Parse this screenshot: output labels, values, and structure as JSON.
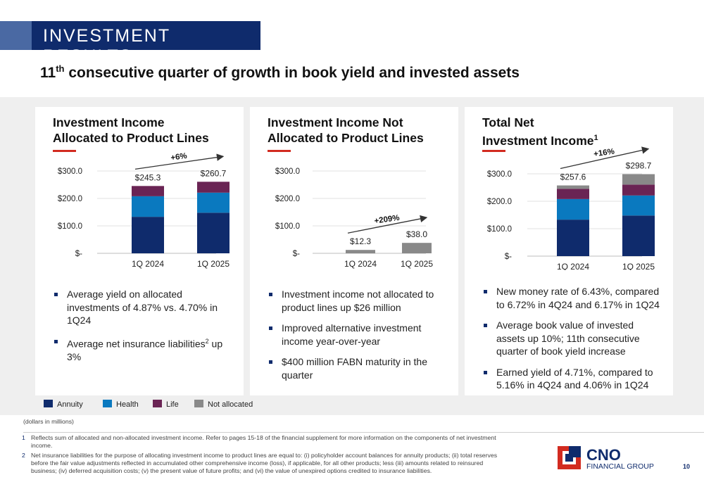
{
  "header": {
    "section_title": "INVESTMENT RESULTS",
    "subtitle_sup": "th",
    "subtitle_pre": "11",
    "subtitle_post": " consecutive quarter of growth in book yield and invested assets"
  },
  "colors": {
    "Annuity": "#0f2b6c",
    "Health": "#0a79bf",
    "Life": "#6a2454",
    "Not allocated": "#898989",
    "accent": "#d22b20"
  },
  "panels": [
    {
      "title_line1": "Investment Income",
      "title_line2": "Allocated to Product Lines",
      "bullets": [
        "Average yield on allocated investments of 4.87% vs. 4.70% in 1Q24",
        "Average net insurance liabilities"
      ],
      "bullet2_sup": "2",
      "bullet2_tail": " up 3%"
    },
    {
      "title_line1": "Investment Income Not",
      "title_line2": "Allocated to Product Lines",
      "bullets": [
        "Investment income not allocated to product lines up $26 million",
        "Improved alternative investment income year-over-year",
        "$400 million FABN maturity in the quarter"
      ]
    },
    {
      "title_line1": "Total Net",
      "title_line2": "Investment Income",
      "title_sup": "1",
      "bullets": [
        "New money rate of 6.43%, compared to 6.72% in 4Q24 and 6.17% in 1Q24",
        "Average book value of invested assets up 10%; 11th consecutive quarter of book yield increase",
        "Earned yield of 4.71%, compared to 5.16% in 4Q24 and 4.06% in 1Q24"
      ]
    }
  ],
  "chart_data": [
    {
      "type": "bar",
      "stacked": true,
      "title": "Investment Income Allocated to Product Lines",
      "categories": [
        "1Q 2024",
        "1Q 2025"
      ],
      "series": [
        {
          "name": "Annuity",
          "values": [
            133,
            148
          ]
        },
        {
          "name": "Health",
          "values": [
            75,
            73
          ]
        },
        {
          "name": "Life",
          "values": [
            37.3,
            39.7
          ]
        }
      ],
      "totals": [
        245.3,
        260.7
      ],
      "total_labels": [
        "$245.3",
        "$260.7"
      ],
      "growth_label": "+6%",
      "yticks": [
        0,
        100,
        200,
        300
      ],
      "ytick_labels": [
        "$-",
        "$100.0",
        "$200.0",
        "$300.0"
      ],
      "ylim": [
        0,
        300
      ],
      "grid": true
    },
    {
      "type": "bar",
      "stacked": true,
      "title": "Investment Income Not Allocated to Product Lines",
      "categories": [
        "1Q 2024",
        "1Q 2025"
      ],
      "series": [
        {
          "name": "Not allocated",
          "values": [
            12.3,
            38.0
          ]
        }
      ],
      "totals": [
        12.3,
        38.0
      ],
      "total_labels": [
        "$12.3",
        "$38.0"
      ],
      "growth_label": "+209%",
      "yticks": [
        0,
        100,
        200,
        300
      ],
      "ytick_labels": [
        "$-",
        "$100.0",
        "$200.0",
        "$300.0"
      ],
      "ylim": [
        0,
        300
      ],
      "grid": true
    },
    {
      "type": "bar",
      "stacked": true,
      "title": "Total Net Investment Income",
      "categories": [
        "1Q 2024",
        "1Q 2025"
      ],
      "series": [
        {
          "name": "Annuity",
          "values": [
            133,
            148
          ]
        },
        {
          "name": "Health",
          "values": [
            75,
            73
          ]
        },
        {
          "name": "Life",
          "values": [
            37.3,
            39.7
          ]
        },
        {
          "name": "Not allocated",
          "values": [
            12.3,
            38.0
          ]
        }
      ],
      "totals": [
        257.6,
        298.7
      ],
      "total_labels": [
        "$257.6",
        "$298.7"
      ],
      "growth_label": "+16%",
      "yticks": [
        0,
        100,
        200,
        300
      ],
      "ytick_labels": [
        "$-",
        "$100.0",
        "$200.0",
        "$300.0"
      ],
      "ylim": [
        0,
        300
      ],
      "grid": true
    }
  ],
  "legend": [
    "Annuity",
    "Health",
    "Life",
    "Not allocated"
  ],
  "footnotes": {
    "units": "(dollars in millions)",
    "notes": [
      {
        "num": "1",
        "text": "Reflects sum of allocated and non-allocated investment income. Refer to pages 15-18 of the financial supplement for more information on the components of net investment income."
      },
      {
        "num": "2",
        "text": "Net insurance liabilities for the purpose of allocating investment income to product lines are equal to: (i) policyholder account balances for annuity products; (ii) total reserves before the fair value adjustments reflected in accumulated other comprehensive income (loss), if applicable, for all other products; less (iii) amounts related to reinsured business; (iv) deferred acquisition costs; (v) the present value of future profits; and (vi) the value of unexpired options credited to insurance liabilities."
      }
    ]
  },
  "logo": {
    "name": "CNO",
    "tagline": "FINANCIAL GROUP"
  },
  "page_number": "10"
}
